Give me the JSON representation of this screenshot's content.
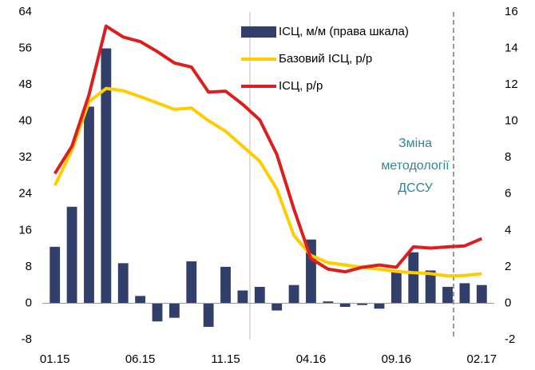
{
  "chart_data": {
    "type": "bar_line",
    "categories": [
      "01.15",
      null,
      null,
      null,
      null,
      "06.15",
      null,
      null,
      null,
      null,
      "11.15",
      null,
      null,
      null,
      null,
      "04.16",
      null,
      null,
      null,
      null,
      "09.16",
      null,
      null,
      null,
      null,
      "02.17"
    ],
    "series": [
      {
        "name": "ІСЦ, м/м (права шкала)",
        "type": "bar",
        "axis": "y2",
        "color": "#333f6b",
        "values": [
          3.1,
          5.3,
          10.8,
          14.0,
          2.2,
          0.4,
          -1.0,
          -0.8,
          2.3,
          -1.3,
          2.0,
          0.7,
          0.9,
          -0.4,
          1.0,
          3.5,
          0.1,
          -0.2,
          -0.1,
          -0.3,
          1.8,
          2.8,
          1.8,
          0.9,
          1.1,
          1.0
        ]
      },
      {
        "name": "Базовий ІСЦ, р/р",
        "type": "line",
        "axis": "y",
        "color": "#ffcc00",
        "values": [
          25.9,
          33.6,
          44.3,
          47.2,
          46.7,
          45.4,
          44.0,
          42.6,
          42.9,
          40.1,
          37.8,
          34.5,
          31.2,
          25.1,
          14.9,
          10.5,
          8.9,
          8.4,
          7.9,
          7.5,
          7.0,
          6.7,
          6.5,
          6.0,
          6.1,
          6.5
        ]
      },
      {
        "name": "ІСЦ, р/р",
        "type": "line",
        "axis": "y",
        "color": "#dd1e1e",
        "values": [
          28.5,
          34.5,
          45.8,
          60.9,
          58.5,
          57.5,
          55.3,
          52.8,
          51.9,
          46.4,
          46.6,
          43.7,
          40.3,
          32.7,
          20.7,
          9.8,
          7.5,
          6.9,
          7.9,
          8.4,
          7.9,
          12.4,
          12.1,
          12.4,
          12.6,
          14.2
        ]
      }
    ],
    "ylim": [
      -8,
      64
    ],
    "yticks": [
      -8,
      0,
      8,
      16,
      24,
      32,
      40,
      48,
      56,
      64
    ],
    "y2lim": [
      -2,
      16
    ],
    "y2ticks": [
      -2,
      0,
      2,
      4,
      6,
      8,
      10,
      12,
      14,
      16
    ],
    "annotation": [
      "Зміна",
      "методології",
      "ДССУ"
    ],
    "grid": false
  }
}
